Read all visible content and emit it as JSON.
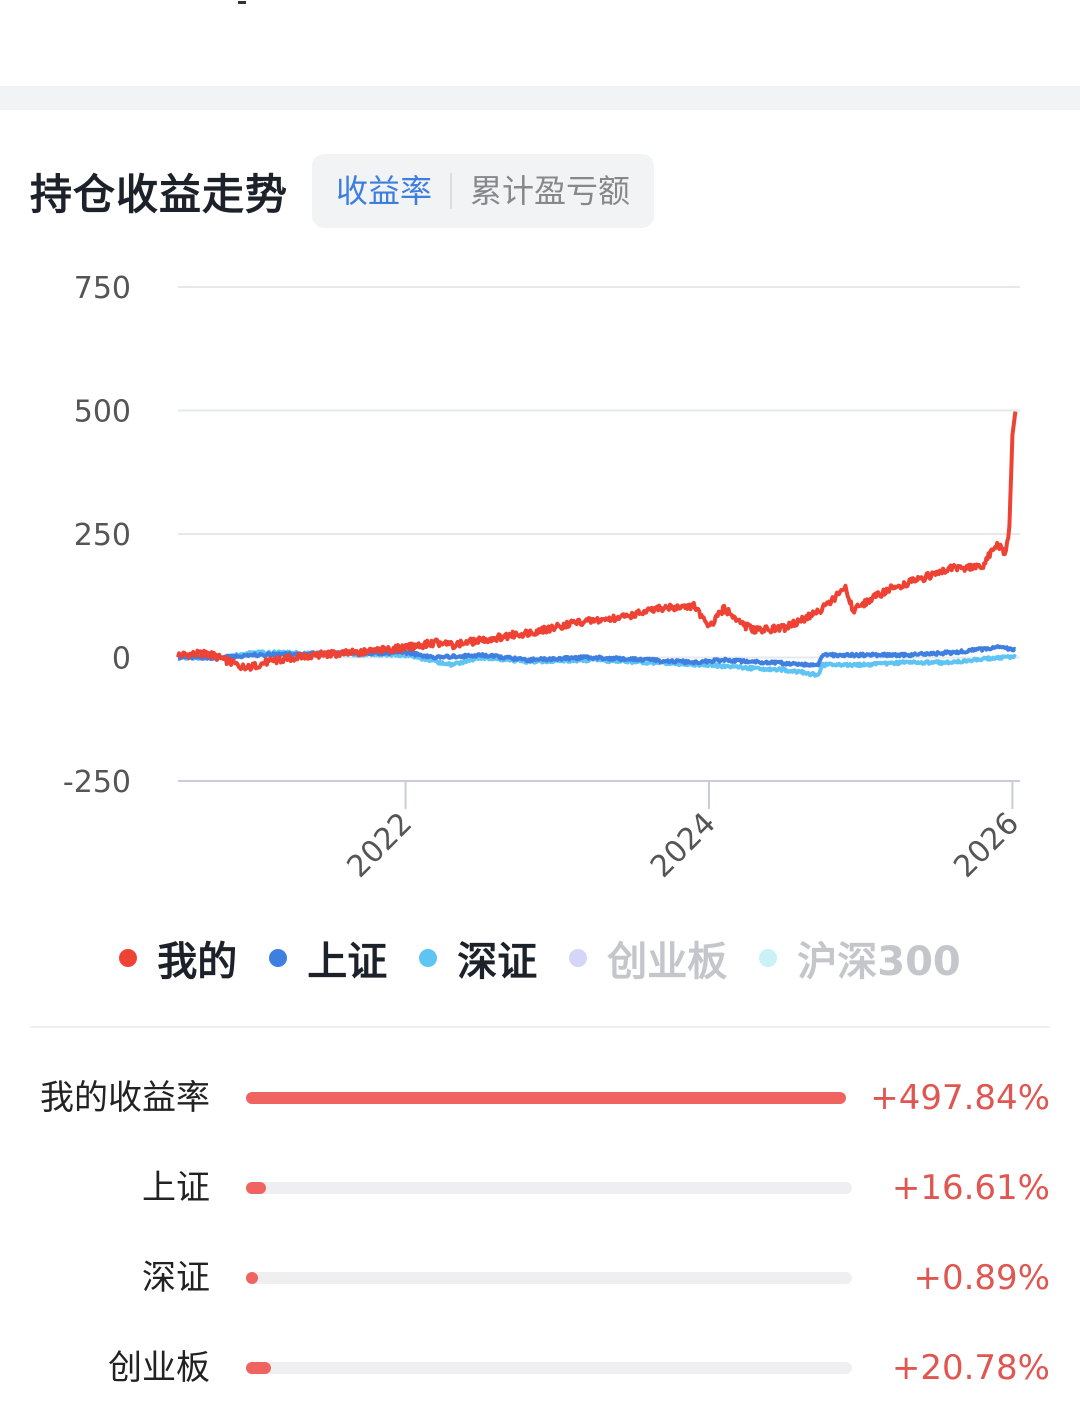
{
  "header": {
    "title": "持仓收益走势",
    "tabs": [
      {
        "label": "收益率",
        "active": true
      },
      {
        "label": "累计盈亏额",
        "active": false
      }
    ]
  },
  "chart_data": {
    "type": "line",
    "y_ticks": [
      "750",
      "500",
      "250",
      "0",
      "-250"
    ],
    "x_ticks": [
      "2022",
      "2024",
      "2026"
    ],
    "ylim": [
      -250,
      750
    ],
    "x_range": [
      2020.5,
      2026.05
    ],
    "grid": true,
    "legend_position": "bottom",
    "series": [
      {
        "name": "我的",
        "color": "#ee4334",
        "visible": true,
        "x": [
          2020.5,
          2020.7,
          2020.95,
          2021.1,
          2021.4,
          2021.7,
          2022.0,
          2022.2,
          2022.3,
          2022.5,
          2022.7,
          2022.9,
          2023.1,
          2023.4,
          2023.7,
          2023.9,
          2024.0,
          2024.1,
          2024.2,
          2024.3,
          2024.5,
          2024.7,
          2024.75,
          2024.9,
          2024.95,
          2025.05,
          2025.2,
          2025.4,
          2025.6,
          2025.8,
          2025.9,
          2025.95,
          2025.98,
          2026.0,
          2026.02
        ],
        "y": [
          5,
          8,
          -22,
          -8,
          5,
          10,
          20,
          30,
          25,
          35,
          45,
          55,
          70,
          80,
          100,
          105,
          60,
          100,
          70,
          55,
          60,
          90,
          100,
          140,
          95,
          115,
          140,
          160,
          180,
          185,
          230,
          210,
          260,
          450,
          497.84
        ]
      },
      {
        "name": "上证",
        "color": "#3f7fe0",
        "visible": true,
        "x": [
          2020.5,
          2020.8,
          2021.0,
          2021.5,
          2022.0,
          2022.2,
          2022.5,
          2022.8,
          2023.2,
          2023.6,
          2023.9,
          2024.1,
          2024.4,
          2024.72,
          2024.75,
          2025.0,
          2025.3,
          2025.6,
          2025.9,
          2026.02
        ],
        "y": [
          0,
          0,
          5,
          8,
          10,
          0,
          5,
          -5,
          0,
          -5,
          -10,
          -5,
          -10,
          -15,
          5,
          5,
          5,
          10,
          20,
          16.61
        ]
      },
      {
        "name": "深证",
        "color": "#5ec4f4",
        "visible": true,
        "x": [
          2020.5,
          2020.8,
          2021.0,
          2021.5,
          2022.0,
          2022.3,
          2022.5,
          2022.8,
          2023.2,
          2023.6,
          2024.0,
          2024.2,
          2024.5,
          2024.72,
          2024.75,
          2025.0,
          2025.3,
          2025.6,
          2025.9,
          2026.02
        ],
        "y": [
          0,
          0,
          10,
          8,
          5,
          -15,
          0,
          -8,
          -5,
          -10,
          -15,
          -20,
          -25,
          -35,
          -15,
          -15,
          -10,
          -10,
          0,
          0.89
        ]
      },
      {
        "name": "创业板",
        "color": "#d4d5f8",
        "visible": false,
        "final": 20.78
      },
      {
        "name": "沪深300",
        "color": "#c9f1f6",
        "visible": false
      }
    ]
  },
  "legend": [
    {
      "label": "我的",
      "color": "#ee4334",
      "on": true
    },
    {
      "label": "上证",
      "color": "#3f7fe0",
      "on": true
    },
    {
      "label": "深证",
      "color": "#5ec4f4",
      "on": true
    },
    {
      "label": "创业板",
      "color": "#d4d5f8",
      "on": false
    },
    {
      "label": "沪深300",
      "color": "#c9f1f6",
      "on": false
    }
  ],
  "returns": [
    {
      "label": "我的收益率",
      "value": "+497.84%",
      "pct": 497.84
    },
    {
      "label": "上证",
      "value": "+16.61%",
      "pct": 16.61
    },
    {
      "label": "深证",
      "value": "+0.89%",
      "pct": 0.89
    },
    {
      "label": "创业板",
      "value": "+20.78%",
      "pct": 20.78
    }
  ],
  "colors": {
    "accent": "#3d7ee0",
    "positive": "#e05650",
    "bar": "#ef6461"
  }
}
